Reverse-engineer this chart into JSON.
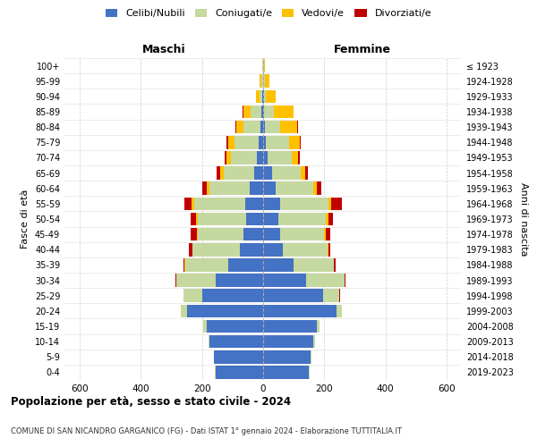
{
  "age_groups": [
    "0-4",
    "5-9",
    "10-14",
    "15-19",
    "20-24",
    "25-29",
    "30-34",
    "35-39",
    "40-44",
    "45-49",
    "50-54",
    "55-59",
    "60-64",
    "65-69",
    "70-74",
    "75-79",
    "80-84",
    "85-89",
    "90-94",
    "95-99",
    "100+"
  ],
  "birth_years": [
    "2019-2023",
    "2014-2018",
    "2009-2013",
    "2004-2008",
    "1999-2003",
    "1994-1998",
    "1989-1993",
    "1984-1988",
    "1979-1983",
    "1974-1978",
    "1969-1973",
    "1964-1968",
    "1959-1963",
    "1954-1958",
    "1949-1953",
    "1944-1948",
    "1939-1943",
    "1934-1938",
    "1929-1933",
    "1924-1928",
    "≤ 1923"
  ],
  "males": {
    "celibi": [
      155,
      160,
      175,
      185,
      250,
      200,
      155,
      115,
      75,
      65,
      55,
      60,
      45,
      30,
      20,
      15,
      8,
      5,
      2,
      1,
      1
    ],
    "coniugati": [
      2,
      2,
      5,
      10,
      20,
      60,
      130,
      140,
      155,
      150,
      160,
      165,
      130,
      100,
      85,
      80,
      55,
      35,
      10,
      5,
      1
    ],
    "vedovi": [
      0,
      0,
      0,
      0,
      0,
      0,
      0,
      2,
      2,
      3,
      5,
      8,
      10,
      12,
      15,
      20,
      25,
      25,
      10,
      5,
      1
    ],
    "divorziati": [
      0,
      0,
      0,
      0,
      0,
      2,
      3,
      5,
      10,
      18,
      18,
      25,
      15,
      10,
      5,
      6,
      3,
      1,
      0,
      0,
      0
    ]
  },
  "females": {
    "nubili": [
      150,
      155,
      165,
      175,
      240,
      195,
      140,
      100,
      65,
      55,
      50,
      55,
      40,
      28,
      15,
      10,
      6,
      4,
      2,
      1,
      1
    ],
    "coniugate": [
      2,
      2,
      5,
      10,
      18,
      55,
      125,
      130,
      145,
      145,
      155,
      158,
      125,
      95,
      80,
      75,
      50,
      30,
      8,
      4,
      1
    ],
    "vedove": [
      0,
      0,
      0,
      0,
      0,
      0,
      2,
      2,
      3,
      5,
      8,
      10,
      12,
      15,
      20,
      35,
      55,
      65,
      30,
      15,
      3
    ],
    "divorziate": [
      0,
      0,
      0,
      0,
      0,
      2,
      2,
      4,
      8,
      15,
      15,
      35,
      12,
      8,
      5,
      4,
      2,
      1,
      0,
      0,
      0
    ]
  },
  "color_celibi": "#4472c4",
  "color_coniugati": "#c5d89f",
  "color_vedovi": "#ffc000",
  "color_divorziati": "#c00000",
  "xlim": 650,
  "title": "Popolazione per età, sesso e stato civile - 2024",
  "subtitle": "COMUNE DI SAN NICANDRO GARGANICO (FG) - Dati ISTAT 1° gennaio 2024 - Elaborazione TUTTITALIA.IT",
  "ylabel": "Fasce di età",
  "ylabel_right": "Anni di nascita"
}
